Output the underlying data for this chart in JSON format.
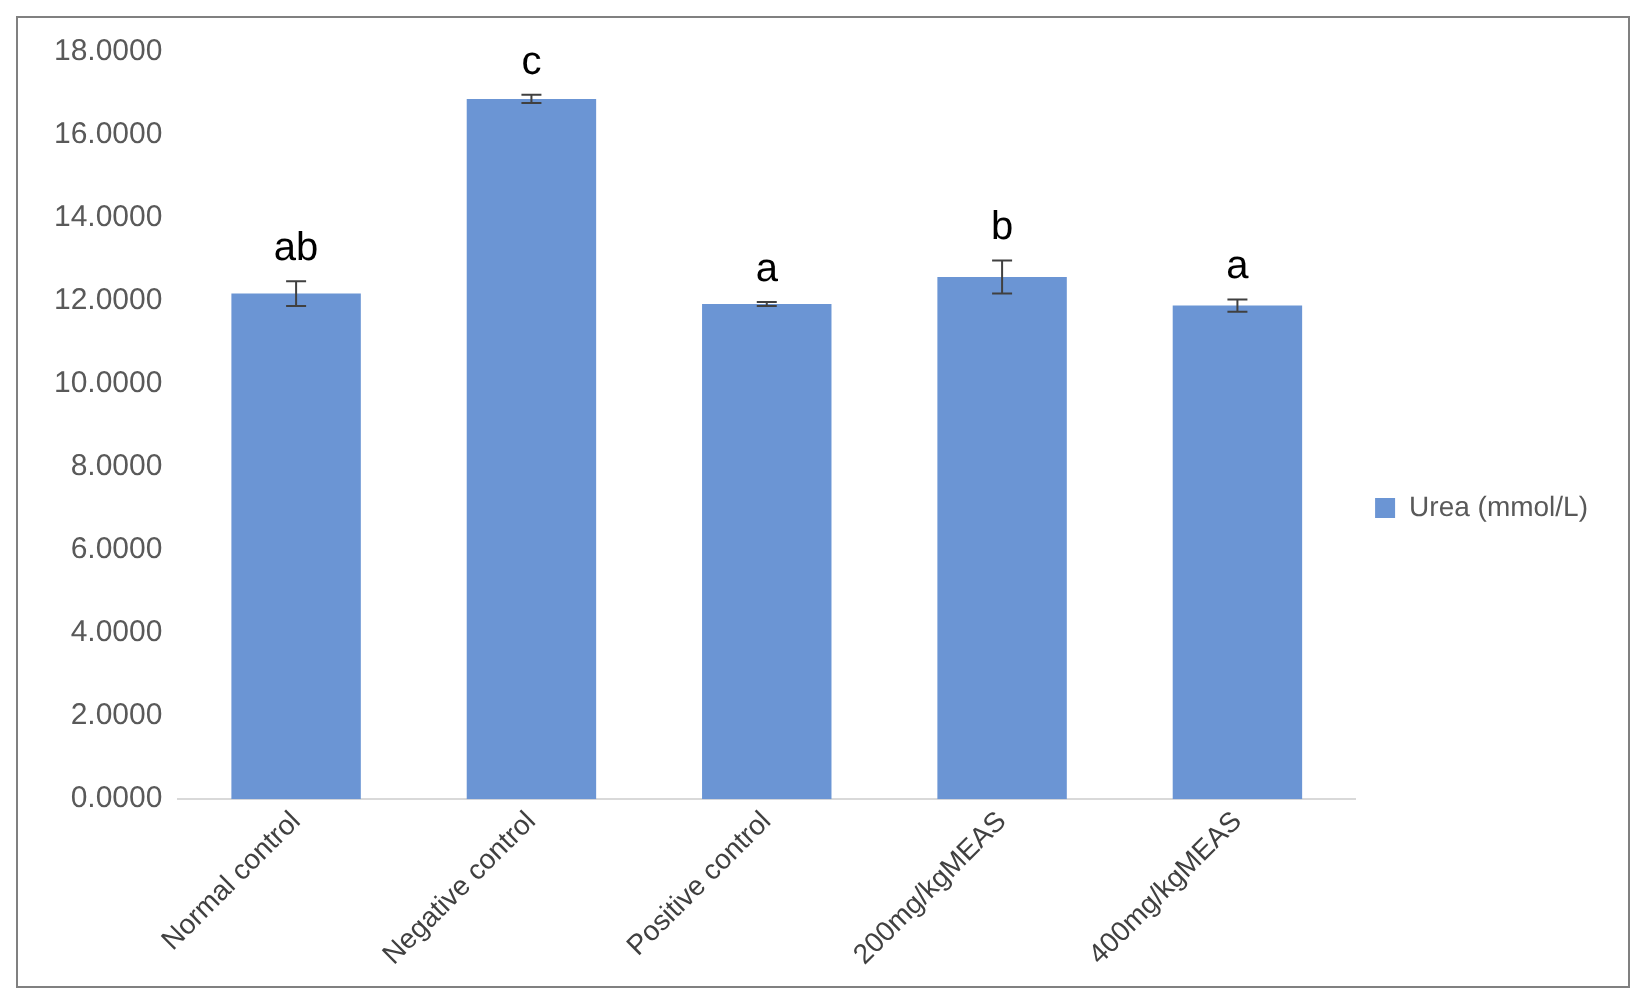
{
  "chart_data": {
    "type": "bar",
    "categories": [
      "Normal control",
      "Negative control",
      "Positive control",
      "200mg/kgMEAS",
      "400mg/kgMEAS"
    ],
    "series": [
      {
        "name": "Urea (mmol/L)",
        "color": "#6b95d4",
        "values": [
          12.18,
          16.87,
          11.93,
          12.58,
          11.89
        ],
        "errors": [
          0.3,
          0.1,
          0.05,
          0.4,
          0.15
        ]
      }
    ],
    "ylim": [
      0,
      18
    ],
    "yticks": [
      {
        "value": 0,
        "label": "0.0000"
      },
      {
        "value": 2,
        "label": "2.0000"
      },
      {
        "value": 4,
        "label": "4.0000"
      },
      {
        "value": 6,
        "label": "6.0000"
      },
      {
        "value": 8,
        "label": "8.0000"
      },
      {
        "value": 10,
        "label": "10.0000"
      },
      {
        "value": 12,
        "label": "12.0000"
      },
      {
        "value": 14,
        "label": "14.0000"
      },
      {
        "value": 16,
        "label": "16.0000"
      },
      {
        "value": 18,
        "label": "18.0000"
      }
    ],
    "annotations": [
      {
        "text": "ab",
        "x": "Normal control",
        "y": 12.48
      },
      {
        "text": "c",
        "x": "Negative control",
        "y": 16.97
      },
      {
        "text": "a",
        "x": "Positive control",
        "y": 11.98
      },
      {
        "text": "b",
        "x": "200mg/kgMEAS",
        "y": 12.98
      },
      {
        "text": "a",
        "x": "400mg/kgMEAS",
        "y": 12.04
      }
    ],
    "grid": false,
    "legend": "right"
  }
}
